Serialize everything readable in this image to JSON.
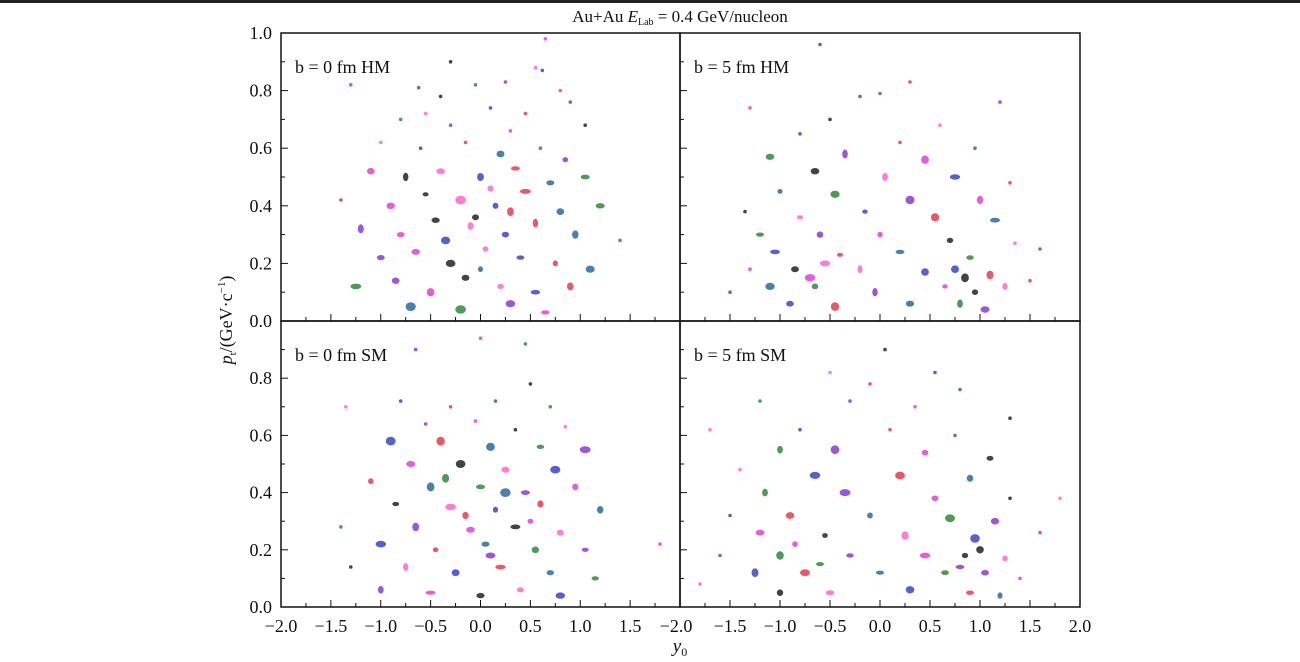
{
  "chart_data": {
    "type": "scatter",
    "title": "Au+Au E_Lab = 0.4 GeV/nucleon",
    "title_parts": {
      "pre": "Au+Au ",
      "var": "E",
      "sub": "Lab",
      "post": " = 0.4 GeV/nucleon"
    },
    "xlabel": "y0",
    "xlabel_parts": {
      "var": "y",
      "sub": "0"
    },
    "ylabel": "pt/(GeV·c⁻¹)",
    "ylabel_parts": {
      "var": "p",
      "sub": "t",
      "post": "/(GeV·c",
      "sup": "−1",
      "close": ")"
    },
    "xlim": [
      -2.0,
      2.0
    ],
    "ylim": [
      0.0,
      1.0
    ],
    "x_ticks": [
      "−2.0",
      "−1.5",
      "−1.0",
      "−0.5",
      "0.0",
      "0.5",
      "1.0",
      "1.5",
      "2.0"
    ],
    "y_ticks_top": [
      "0.0",
      "0.2",
      "0.4",
      "0.6",
      "0.8",
      "1.0"
    ],
    "y_ticks_bottom": [
      "0.0",
      "0.2",
      "0.4",
      "0.6",
      "0.8"
    ],
    "grid": false,
    "colors": [
      "#e040d8",
      "#3a44c8",
      "#2f8a3a",
      "#222222",
      "#e83a4a",
      "#8a3ad0",
      "#ff66cc",
      "#2a6aa0"
    ],
    "panels": [
      {
        "label": "b = 0 fm HM",
        "points": [
          [
            0.65,
            0.98
          ],
          [
            -0.3,
            0.9
          ],
          [
            0.55,
            0.88
          ],
          [
            0.62,
            0.87
          ],
          [
            -1.3,
            0.82
          ],
          [
            -0.62,
            0.81
          ],
          [
            -0.05,
            0.82
          ],
          [
            0.25,
            0.83
          ],
          [
            0.8,
            0.8
          ],
          [
            -0.4,
            0.78
          ],
          [
            -0.55,
            0.72
          ],
          [
            0.1,
            0.74
          ],
          [
            0.45,
            0.72
          ],
          [
            0.9,
            0.76
          ],
          [
            -0.8,
            0.7
          ],
          [
            -0.3,
            0.68
          ],
          [
            0.3,
            0.66
          ],
          [
            1.05,
            0.68
          ],
          [
            -1.0,
            0.62
          ],
          [
            -0.6,
            0.6
          ],
          [
            -0.15,
            0.62
          ],
          [
            0.2,
            0.58
          ],
          [
            0.6,
            0.6
          ],
          [
            0.85,
            0.56
          ],
          [
            -1.1,
            0.52
          ],
          [
            -0.75,
            0.5
          ],
          [
            -0.4,
            0.52
          ],
          [
            0.0,
            0.5
          ],
          [
            0.35,
            0.53
          ],
          [
            0.7,
            0.48
          ],
          [
            1.05,
            0.5
          ],
          [
            -1.4,
            0.42
          ],
          [
            -0.9,
            0.4
          ],
          [
            -0.55,
            0.44
          ],
          [
            -0.2,
            0.42
          ],
          [
            0.15,
            0.4
          ],
          [
            0.45,
            0.45
          ],
          [
            0.8,
            0.38
          ],
          [
            1.2,
            0.4
          ],
          [
            -1.2,
            0.32
          ],
          [
            -0.8,
            0.3
          ],
          [
            -0.45,
            0.35
          ],
          [
            -0.1,
            0.33
          ],
          [
            0.25,
            0.3
          ],
          [
            0.55,
            0.34
          ],
          [
            0.95,
            0.3
          ],
          [
            1.4,
            0.28
          ],
          [
            -1.0,
            0.22
          ],
          [
            -0.65,
            0.24
          ],
          [
            -0.3,
            0.2
          ],
          [
            0.05,
            0.25
          ],
          [
            0.4,
            0.22
          ],
          [
            0.75,
            0.2
          ],
          [
            1.1,
            0.18
          ],
          [
            -1.25,
            0.12
          ],
          [
            -0.85,
            0.14
          ],
          [
            -0.5,
            0.1
          ],
          [
            -0.15,
            0.15
          ],
          [
            0.2,
            0.12
          ],
          [
            0.55,
            0.1
          ],
          [
            0.9,
            0.12
          ],
          [
            -0.7,
            0.05
          ],
          [
            -0.2,
            0.04
          ],
          [
            0.3,
            0.06
          ],
          [
            0.65,
            0.03
          ],
          [
            -0.05,
            0.36
          ],
          [
            0.1,
            0.46
          ],
          [
            -0.35,
            0.28
          ],
          [
            0.3,
            0.38
          ],
          [
            0.0,
            0.18
          ]
        ]
      },
      {
        "label": "b = 5 fm HM",
        "points": [
          [
            -0.6,
            0.96
          ],
          [
            0.3,
            0.83
          ],
          [
            -0.2,
            0.78
          ],
          [
            0.0,
            0.79
          ],
          [
            1.2,
            0.76
          ],
          [
            -1.3,
            0.74
          ],
          [
            -0.5,
            0.7
          ],
          [
            0.6,
            0.68
          ],
          [
            -0.8,
            0.65
          ],
          [
            0.2,
            0.62
          ],
          [
            0.95,
            0.6
          ],
          [
            -1.1,
            0.57
          ],
          [
            -0.35,
            0.58
          ],
          [
            0.45,
            0.56
          ],
          [
            -0.65,
            0.52
          ],
          [
            0.05,
            0.5
          ],
          [
            0.75,
            0.5
          ],
          [
            1.3,
            0.48
          ],
          [
            -1.0,
            0.45
          ],
          [
            -0.45,
            0.44
          ],
          [
            0.3,
            0.42
          ],
          [
            1.0,
            0.42
          ],
          [
            -1.35,
            0.38
          ],
          [
            -0.8,
            0.36
          ],
          [
            -0.15,
            0.38
          ],
          [
            0.55,
            0.36
          ],
          [
            1.15,
            0.35
          ],
          [
            -1.2,
            0.3
          ],
          [
            -0.6,
            0.3
          ],
          [
            0.0,
            0.3
          ],
          [
            0.7,
            0.28
          ],
          [
            1.35,
            0.27
          ],
          [
            -1.05,
            0.24
          ],
          [
            -0.4,
            0.23
          ],
          [
            0.2,
            0.24
          ],
          [
            0.9,
            0.22
          ],
          [
            1.6,
            0.25
          ],
          [
            -1.3,
            0.18
          ],
          [
            -0.85,
            0.18
          ],
          [
            -0.2,
            0.18
          ],
          [
            0.45,
            0.17
          ],
          [
            1.1,
            0.16
          ],
          [
            -1.1,
            0.12
          ],
          [
            -0.65,
            0.12
          ],
          [
            -0.05,
            0.1
          ],
          [
            0.65,
            0.12
          ],
          [
            0.95,
            0.1
          ],
          [
            1.25,
            0.12
          ],
          [
            -0.9,
            0.06
          ],
          [
            -0.45,
            0.05
          ],
          [
            0.3,
            0.06
          ],
          [
            0.8,
            0.06
          ],
          [
            1.05,
            0.04
          ],
          [
            -0.7,
            0.15
          ],
          [
            0.85,
            0.15
          ],
          [
            -0.55,
            0.2
          ],
          [
            0.75,
            0.18
          ],
          [
            1.5,
            0.14
          ],
          [
            -1.5,
            0.1
          ]
        ]
      },
      {
        "label": "b = 0 fm SM",
        "points": [
          [
            0.45,
            0.92
          ],
          [
            -0.65,
            0.9
          ],
          [
            0.0,
            0.94
          ],
          [
            0.5,
            0.78
          ],
          [
            -1.35,
            0.7
          ],
          [
            -0.8,
            0.72
          ],
          [
            -0.3,
            0.7
          ],
          [
            0.15,
            0.72
          ],
          [
            0.7,
            0.7
          ],
          [
            -0.55,
            0.64
          ],
          [
            -0.05,
            0.65
          ],
          [
            0.35,
            0.62
          ],
          [
            0.85,
            0.63
          ],
          [
            -0.9,
            0.58
          ],
          [
            -0.4,
            0.58
          ],
          [
            0.1,
            0.56
          ],
          [
            0.6,
            0.56
          ],
          [
            1.05,
            0.55
          ],
          [
            -0.7,
            0.5
          ],
          [
            -0.2,
            0.5
          ],
          [
            0.25,
            0.48
          ],
          [
            0.75,
            0.48
          ],
          [
            -1.1,
            0.44
          ],
          [
            -0.5,
            0.42
          ],
          [
            0.0,
            0.42
          ],
          [
            0.45,
            0.4
          ],
          [
            0.95,
            0.42
          ],
          [
            -0.85,
            0.36
          ],
          [
            -0.3,
            0.35
          ],
          [
            0.15,
            0.34
          ],
          [
            0.6,
            0.36
          ],
          [
            1.2,
            0.34
          ],
          [
            -1.4,
            0.28
          ],
          [
            -0.65,
            0.28
          ],
          [
            -0.1,
            0.27
          ],
          [
            0.35,
            0.28
          ],
          [
            0.8,
            0.26
          ],
          [
            -1.0,
            0.22
          ],
          [
            -0.45,
            0.2
          ],
          [
            0.05,
            0.22
          ],
          [
            0.55,
            0.2
          ],
          [
            1.05,
            0.2
          ],
          [
            1.8,
            0.22
          ],
          [
            -1.3,
            0.14
          ],
          [
            -0.75,
            0.14
          ],
          [
            -0.25,
            0.12
          ],
          [
            0.2,
            0.14
          ],
          [
            0.7,
            0.12
          ],
          [
            1.15,
            0.1
          ],
          [
            -1.0,
            0.06
          ],
          [
            -0.5,
            0.05
          ],
          [
            0.0,
            0.04
          ],
          [
            0.4,
            0.06
          ],
          [
            0.8,
            0.04
          ],
          [
            -0.15,
            0.32
          ],
          [
            0.25,
            0.4
          ],
          [
            -0.35,
            0.45
          ],
          [
            0.1,
            0.18
          ],
          [
            0.5,
            0.3
          ]
        ]
      },
      {
        "label": "b = 5 fm SM",
        "points": [
          [
            0.05,
            0.9
          ],
          [
            -0.5,
            0.82
          ],
          [
            0.55,
            0.82
          ],
          [
            -0.1,
            0.78
          ],
          [
            0.8,
            0.76
          ],
          [
            -1.2,
            0.72
          ],
          [
            -0.3,
            0.72
          ],
          [
            0.35,
            0.7
          ],
          [
            1.3,
            0.66
          ],
          [
            -1.7,
            0.62
          ],
          [
            -0.8,
            0.62
          ],
          [
            0.1,
            0.62
          ],
          [
            0.75,
            0.6
          ],
          [
            -1.0,
            0.55
          ],
          [
            -0.45,
            0.55
          ],
          [
            0.45,
            0.54
          ],
          [
            1.1,
            0.52
          ],
          [
            -1.4,
            0.48
          ],
          [
            -0.65,
            0.46
          ],
          [
            0.2,
            0.46
          ],
          [
            0.9,
            0.45
          ],
          [
            -1.15,
            0.4
          ],
          [
            -0.35,
            0.4
          ],
          [
            0.55,
            0.38
          ],
          [
            1.3,
            0.38
          ],
          [
            1.8,
            0.38
          ],
          [
            -1.5,
            0.32
          ],
          [
            -0.9,
            0.32
          ],
          [
            -0.1,
            0.32
          ],
          [
            0.7,
            0.31
          ],
          [
            1.15,
            0.3
          ],
          [
            -1.2,
            0.26
          ],
          [
            -0.55,
            0.25
          ],
          [
            0.25,
            0.25
          ],
          [
            0.95,
            0.24
          ],
          [
            1.6,
            0.26
          ],
          [
            -1.6,
            0.18
          ],
          [
            -1.0,
            0.18
          ],
          [
            -0.3,
            0.18
          ],
          [
            0.45,
            0.18
          ],
          [
            0.85,
            0.18
          ],
          [
            1.25,
            0.17
          ],
          [
            -1.25,
            0.12
          ],
          [
            -0.75,
            0.12
          ],
          [
            0.0,
            0.12
          ],
          [
            0.65,
            0.12
          ],
          [
            1.05,
            0.12
          ],
          [
            1.4,
            0.1
          ],
          [
            -1.0,
            0.05
          ],
          [
            -0.5,
            0.05
          ],
          [
            0.3,
            0.06
          ],
          [
            0.9,
            0.05
          ],
          [
            1.2,
            0.04
          ],
          [
            -0.6,
            0.15
          ],
          [
            0.8,
            0.14
          ],
          [
            -0.85,
            0.22
          ],
          [
            1.0,
            0.2
          ],
          [
            -1.8,
            0.08
          ]
        ]
      }
    ]
  }
}
